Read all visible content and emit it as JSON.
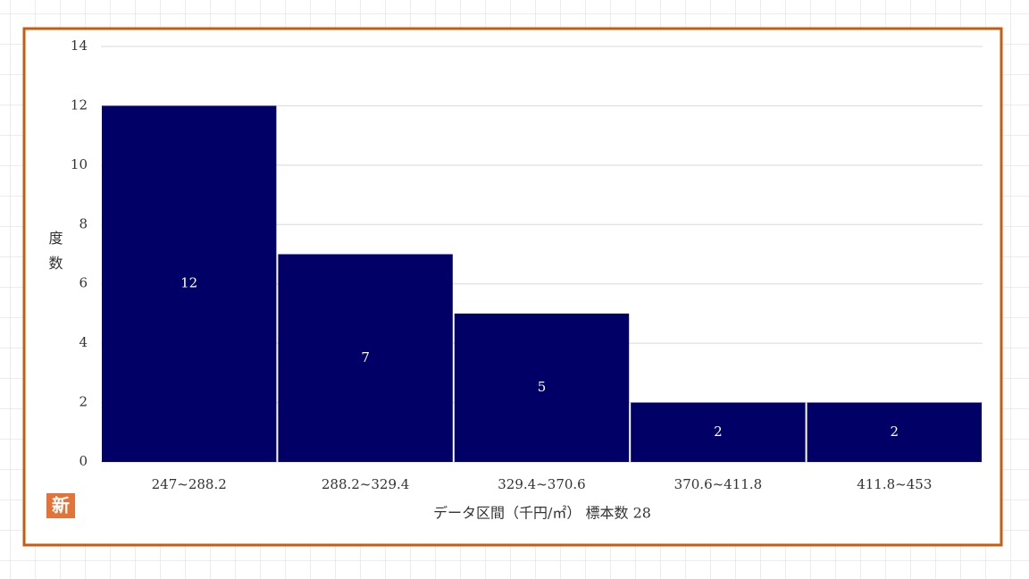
{
  "chart_data": {
    "type": "bar",
    "categories": [
      "247~288.2",
      "288.2~329.4",
      "329.4~370.6",
      "370.6~411.8",
      "411.8~453"
    ],
    "values": [
      12,
      7,
      5,
      2,
      2
    ],
    "color": "#000066",
    "ylim": [
      0,
      14
    ],
    "yticks": [
      0,
      2,
      4,
      6,
      8,
      10,
      12,
      14
    ],
    "grid": true,
    "ylabel": "度数",
    "xlabel": "データ区間（千円/㎡） 標本数 28",
    "badge": "新"
  }
}
